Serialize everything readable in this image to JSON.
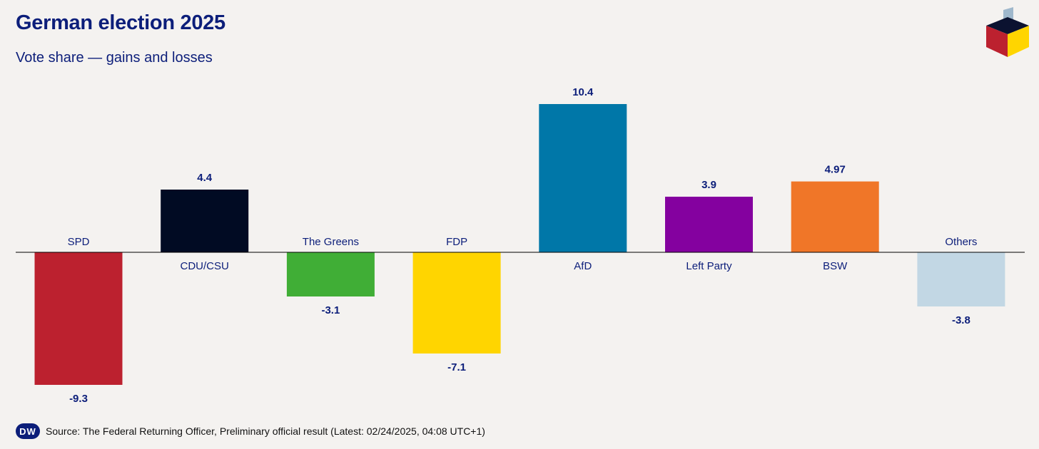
{
  "header": {
    "title": "German election 2025",
    "subtitle": "Vote share — gains and losses"
  },
  "footer": {
    "logo": "DW",
    "source": "Source: The Federal Returning Officer, Preliminary official result (Latest: 02/24/2025, 04:08 UTC+1)"
  },
  "chart_data": {
    "type": "bar",
    "title": "German election 2025",
    "subtitle": "Vote share — gains and losses",
    "xlabel": "",
    "ylabel": "",
    "categories": [
      "SPD",
      "CDU/CSU",
      "The Greens",
      "FDP",
      "AfD",
      "Left Party",
      "BSW",
      "Others"
    ],
    "values": [
      -9.3,
      4.4,
      -3.1,
      -7.1,
      10.4,
      3.9,
      4.97,
      -3.8
    ],
    "value_labels": [
      "-9.3",
      "4.4",
      "-3.1",
      "-7.1",
      "10.4",
      "3.9",
      "4.97",
      "-3.8"
    ],
    "colors": [
      "#bc212f",
      "#010b23",
      "#40ae36",
      "#ffd500",
      "#0077a8",
      "#84019f",
      "#f07628",
      "#c2d7e4"
    ],
    "ylim": [
      -10,
      11
    ],
    "grid": false
  }
}
